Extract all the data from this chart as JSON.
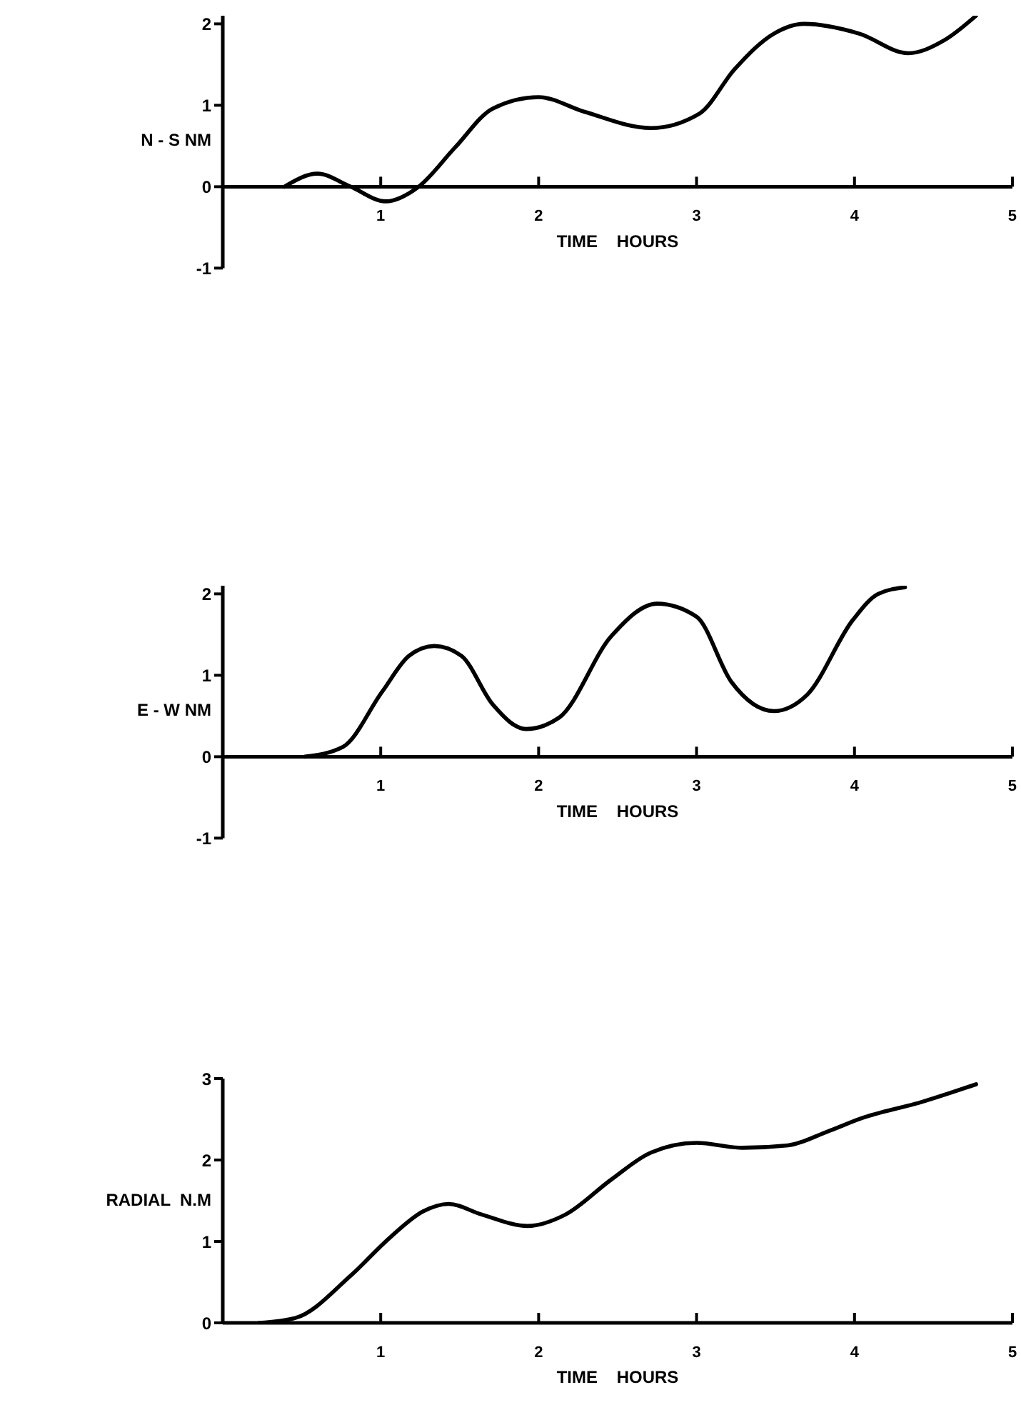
{
  "chart_data": [
    {
      "type": "line",
      "ylabel": "N - S NM",
      "xlabel": "TIME    HOURS",
      "color": "#000000",
      "xlim": [
        0,
        5
      ],
      "xticks": [
        1,
        2,
        3,
        4,
        5
      ],
      "ylim": [
        -1,
        2.1
      ],
      "yticks": [
        -1,
        0,
        1,
        2
      ],
      "x": [
        0.39,
        0.6,
        0.81,
        1.03,
        1.24,
        1.47,
        1.71,
        2.0,
        2.29,
        2.71,
        3.02,
        3.24,
        3.49,
        3.68,
        4.03,
        4.34,
        4.57,
        4.77
      ],
      "values": [
        0,
        0.16,
        0,
        -0.18,
        0,
        0.48,
        0.96,
        1.1,
        0.92,
        0.72,
        0.9,
        1.44,
        1.88,
        2.0,
        1.88,
        1.64,
        1.8,
        2.1
      ]
    },
    {
      "type": "line",
      "ylabel": "E - W NM",
      "xlabel": "TIME    HOURS",
      "color": "#000000",
      "xlim": [
        0,
        5
      ],
      "xticks": [
        1,
        2,
        3,
        4,
        5
      ],
      "ylim": [
        -1,
        2.1
      ],
      "yticks": [
        -1,
        0,
        1,
        2
      ],
      "x": [
        0.52,
        0.76,
        1.01,
        1.18,
        1.34,
        1.51,
        1.71,
        1.92,
        2.13,
        2.46,
        2.75,
        3.0,
        3.22,
        3.49,
        3.7,
        3.99,
        4.15,
        4.32
      ],
      "values": [
        0,
        0.12,
        0.8,
        1.24,
        1.36,
        1.24,
        0.64,
        0.34,
        0.48,
        1.48,
        1.88,
        1.72,
        0.92,
        0.56,
        0.76,
        1.68,
        2.0,
        2.08
      ]
    },
    {
      "type": "line",
      "ylabel": "RADIAL  N.M",
      "xlabel": "TIME    HOURS",
      "color": "#000000",
      "xlim": [
        0,
        5
      ],
      "xticks": [
        1,
        2,
        3,
        4,
        5
      ],
      "ylim": [
        0,
        3
      ],
      "yticks": [
        0,
        1,
        2,
        3
      ],
      "x": [
        0.23,
        0.46,
        0.81,
        1.06,
        1.27,
        1.43,
        1.64,
        1.93,
        2.17,
        2.46,
        2.71,
        3.0,
        3.29,
        3.58,
        3.83,
        4.04,
        4.42,
        4.77
      ],
      "values": [
        0,
        0.06,
        0.58,
        1.05,
        1.37,
        1.46,
        1.33,
        1.19,
        1.33,
        1.76,
        2.09,
        2.21,
        2.15,
        2.18,
        2.35,
        2.51,
        2.71,
        2.93
      ]
    }
  ]
}
